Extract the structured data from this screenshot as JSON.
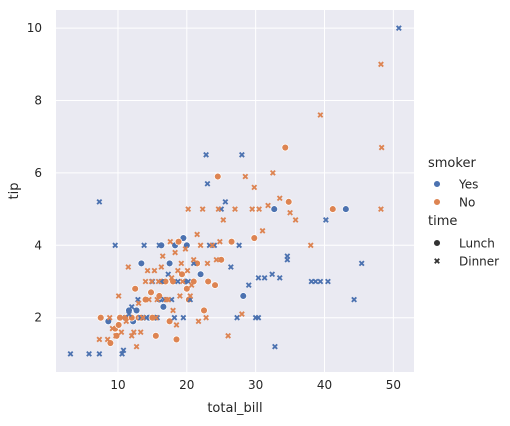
{
  "chart_data": {
    "type": "scatter",
    "title": "",
    "xlabel": "total_bill",
    "ylabel": "tip",
    "xlim": [
      1.0,
      53.0
    ],
    "ylim": [
      0.5,
      10.5
    ],
    "xticks": [
      10,
      20,
      30,
      40,
      50
    ],
    "yticks": [
      2,
      4,
      6,
      8,
      10
    ],
    "grid": true,
    "background": "#EAEAF2",
    "legend": {
      "placement": "right",
      "hue_title": "smoker",
      "hue_items": [
        {
          "label": "Yes",
          "color": "#4C72B0"
        },
        {
          "label": "No",
          "color": "#DD8452"
        }
      ],
      "style_title": "time",
      "style_items": [
        {
          "label": "Lunch",
          "marker": "circle"
        },
        {
          "label": "Dinner",
          "marker": "x"
        }
      ]
    },
    "series": [
      {
        "smoker": "Yes",
        "time": "Lunch",
        "color": "#4C72B0",
        "marker": "circle",
        "points": [
          [
            8.6,
            1.9
          ],
          [
            10.2,
            2.0
          ],
          [
            11.0,
            2.0
          ],
          [
            11.6,
            2.2
          ],
          [
            12.2,
            1.9
          ],
          [
            12.7,
            2.2
          ],
          [
            13.0,
            2.0
          ],
          [
            13.4,
            3.5
          ],
          [
            13.8,
            2.0
          ],
          [
            14.5,
            2.0
          ],
          [
            15.4,
            2.0
          ],
          [
            16.0,
            2.5
          ],
          [
            16.3,
            4.0
          ],
          [
            16.6,
            2.3
          ],
          [
            17.5,
            3.5
          ],
          [
            18.3,
            4.0
          ],
          [
            19.5,
            4.2
          ],
          [
            19.8,
            3.0
          ],
          [
            20.0,
            4.0
          ],
          [
            22.0,
            3.2
          ],
          [
            28.2,
            2.6
          ],
          [
            32.7,
            5.0
          ],
          [
            43.1,
            5.0
          ]
        ]
      },
      {
        "smoker": "No",
        "time": "Lunch",
        "color": "#DD8452",
        "marker": "circle",
        "points": [
          [
            7.5,
            2.0
          ],
          [
            8.9,
            1.3
          ],
          [
            9.6,
            1.7
          ],
          [
            9.8,
            1.5
          ],
          [
            10.1,
            1.8
          ],
          [
            10.3,
            2.0
          ],
          [
            11.3,
            2.0
          ],
          [
            12.0,
            2.0
          ],
          [
            12.5,
            2.8
          ],
          [
            13.0,
            2.0
          ],
          [
            13.4,
            2.0
          ],
          [
            14.0,
            2.5
          ],
          [
            14.8,
            2.7
          ],
          [
            15.0,
            2.0
          ],
          [
            15.5,
            1.5
          ],
          [
            16.0,
            2.6
          ],
          [
            16.4,
            3.0
          ],
          [
            16.9,
            3.0
          ],
          [
            17.5,
            1.9
          ],
          [
            18.0,
            3.0
          ],
          [
            18.5,
            1.4
          ],
          [
            18.8,
            4.1
          ],
          [
            19.3,
            3.2
          ],
          [
            20.0,
            2.8
          ],
          [
            20.3,
            2.5
          ],
          [
            21.0,
            3.0
          ],
          [
            21.5,
            3.5
          ],
          [
            22.5,
            2.2
          ],
          [
            23.1,
            3.0
          ],
          [
            24.1,
            2.9
          ],
          [
            24.5,
            5.9
          ],
          [
            25.0,
            3.6
          ],
          [
            26.5,
            4.1
          ],
          [
            29.8,
            4.2
          ],
          [
            34.3,
            6.7
          ],
          [
            34.8,
            5.2
          ],
          [
            41.2,
            5.0
          ]
        ]
      },
      {
        "smoker": "Yes",
        "time": "Dinner",
        "color": "#4C72B0",
        "marker": "x",
        "points": [
          [
            3.1,
            1.0
          ],
          [
            5.8,
            1.0
          ],
          [
            7.3,
            1.0
          ],
          [
            7.3,
            5.2
          ],
          [
            9.6,
            4.0
          ],
          [
            10.6,
            1.0
          ],
          [
            10.8,
            1.1
          ],
          [
            11.6,
            2.1
          ],
          [
            12.0,
            2.3
          ],
          [
            12.9,
            2.5
          ],
          [
            13.3,
            2.0
          ],
          [
            13.8,
            4.0
          ],
          [
            14.1,
            2.0
          ],
          [
            15.0,
            3.0
          ],
          [
            15.7,
            2.0
          ],
          [
            16.0,
            4.0
          ],
          [
            16.3,
            3.0
          ],
          [
            16.7,
            2.5
          ],
          [
            17.3,
            3.2
          ],
          [
            17.8,
            2.5
          ],
          [
            18.2,
            2.0
          ],
          [
            18.7,
            3.0
          ],
          [
            19.5,
            2.0
          ],
          [
            20.2,
            3.0
          ],
          [
            20.5,
            2.5
          ],
          [
            21.0,
            3.5
          ],
          [
            22.8,
            6.5
          ],
          [
            23.0,
            5.7
          ],
          [
            23.3,
            4.0
          ],
          [
            24.0,
            4.0
          ],
          [
            25.0,
            5.0
          ],
          [
            25.6,
            5.2
          ],
          [
            26.4,
            3.4
          ],
          [
            27.3,
            2.0
          ],
          [
            27.6,
            4.0
          ],
          [
            28.0,
            6.5
          ],
          [
            29.0,
            2.9
          ],
          [
            30.0,
            2.0
          ],
          [
            30.4,
            2.0
          ],
          [
            30.4,
            3.1
          ],
          [
            31.3,
            3.1
          ],
          [
            32.4,
            3.2
          ],
          [
            32.8,
            1.2
          ],
          [
            33.5,
            3.1
          ],
          [
            34.6,
            3.7
          ],
          [
            34.6,
            3.6
          ],
          [
            38.1,
            3.0
          ],
          [
            38.7,
            3.0
          ],
          [
            39.4,
            3.0
          ],
          [
            40.2,
            4.7
          ],
          [
            40.5,
            3.0
          ],
          [
            44.3,
            2.5
          ],
          [
            45.4,
            3.5
          ],
          [
            50.8,
            10.0
          ]
        ]
      },
      {
        "smoker": "No",
        "time": "Dinner",
        "color": "#DD8452",
        "marker": "x",
        "points": [
          [
            7.3,
            1.4
          ],
          [
            8.5,
            1.4
          ],
          [
            8.8,
            2.0
          ],
          [
            9.2,
            1.7
          ],
          [
            9.7,
            1.5
          ],
          [
            10.1,
            2.6
          ],
          [
            10.5,
            1.6
          ],
          [
            10.7,
            2.0
          ],
          [
            11.2,
            1.9
          ],
          [
            11.5,
            3.4
          ],
          [
            12.0,
            1.5
          ],
          [
            12.3,
            1.6
          ],
          [
            12.7,
            1.2
          ],
          [
            13.0,
            2.4
          ],
          [
            13.3,
            1.6
          ],
          [
            13.6,
            2.0
          ],
          [
            14.0,
            3.0
          ],
          [
            14.3,
            3.3
          ],
          [
            14.5,
            2.5
          ],
          [
            14.9,
            3.0
          ],
          [
            15.3,
            3.3
          ],
          [
            15.5,
            2.0
          ],
          [
            15.7,
            2.5
          ],
          [
            15.9,
            3.0
          ],
          [
            16.3,
            3.4
          ],
          [
            16.5,
            3.7
          ],
          [
            17.0,
            2.5
          ],
          [
            17.3,
            2.5
          ],
          [
            17.6,
            4.1
          ],
          [
            17.8,
            3.1
          ],
          [
            18.0,
            2.2
          ],
          [
            18.3,
            3.8
          ],
          [
            18.5,
            1.8
          ],
          [
            18.7,
            3.3
          ],
          [
            19.0,
            2.6
          ],
          [
            19.2,
            3.5
          ],
          [
            19.4,
            3.0
          ],
          [
            19.8,
            3.9
          ],
          [
            20.1,
            3.3
          ],
          [
            20.2,
            5.0
          ],
          [
            20.5,
            2.6
          ],
          [
            20.7,
            2.9
          ],
          [
            21.0,
            3.6
          ],
          [
            21.5,
            4.3
          ],
          [
            21.7,
            1.9
          ],
          [
            22.0,
            4.0
          ],
          [
            22.3,
            5.0
          ],
          [
            22.8,
            2.0
          ],
          [
            23.0,
            3.5
          ],
          [
            23.7,
            4.0
          ],
          [
            24.3,
            3.6
          ],
          [
            24.6,
            5.0
          ],
          [
            24.8,
            4.1
          ],
          [
            25.3,
            4.7
          ],
          [
            26.0,
            1.5
          ],
          [
            27.0,
            5.0
          ],
          [
            28.0,
            2.1
          ],
          [
            28.5,
            5.9
          ],
          [
            29.5,
            5.0
          ],
          [
            29.8,
            5.6
          ],
          [
            30.5,
            5.0
          ],
          [
            31.0,
            4.4
          ],
          [
            31.8,
            5.1
          ],
          [
            32.5,
            6.0
          ],
          [
            33.5,
            5.3
          ],
          [
            35.0,
            4.9
          ],
          [
            35.8,
            4.7
          ],
          [
            38.0,
            4.0
          ],
          [
            39.4,
            7.6
          ],
          [
            48.2,
            9.0
          ],
          [
            48.3,
            6.7
          ],
          [
            48.2,
            5.0
          ]
        ]
      }
    ]
  }
}
